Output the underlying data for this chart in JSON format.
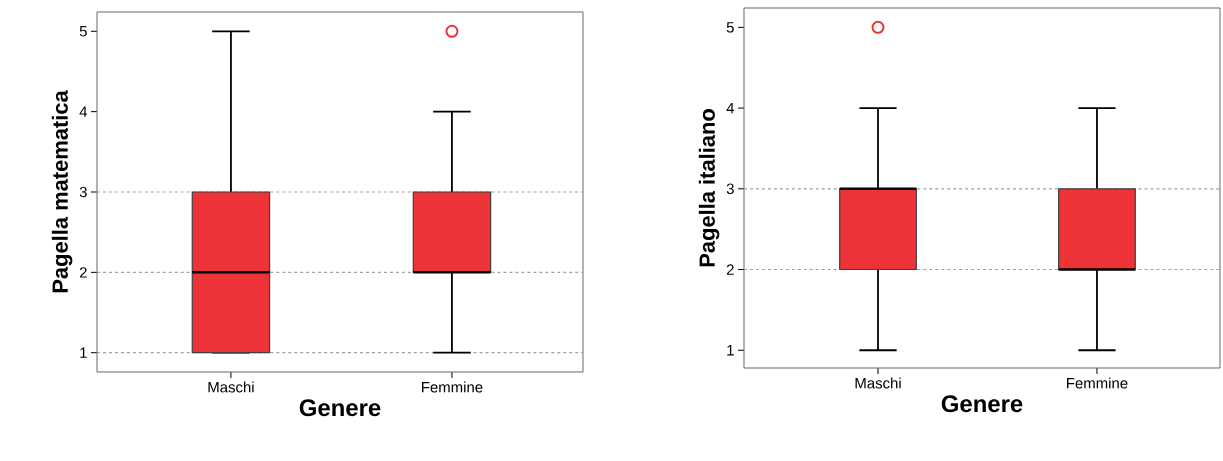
{
  "chart_data": [
    {
      "type": "box",
      "xlabel": "Genere",
      "ylabel": "Pagella matematica",
      "categories": [
        "Maschi",
        "Femmine"
      ],
      "ylim": [
        0.76,
        5.24
      ],
      "yticks": [
        1,
        2,
        3,
        4,
        5
      ],
      "series": [
        {
          "color": "#ee3338",
          "boxes": [
            {
              "low": 1,
              "q1": 1,
              "median": 2,
              "q3": 3,
              "high": 5
            },
            {
              "low": 1,
              "q1": 2,
              "median": 2,
              "q3": 3,
              "high": 4,
              "outliers": [
                5
              ]
            }
          ]
        }
      ],
      "ref_lines": [
        {
          "axis": "y",
          "value": 1,
          "color": "#a0a0a0",
          "line_style": "dashed"
        },
        {
          "axis": "y",
          "value": 2,
          "color": "#a0a0a0",
          "line_style": "dashed"
        },
        {
          "axis": "y",
          "value": 3,
          "color": "#a0a0a0",
          "line_style": "dashed"
        }
      ]
    },
    {
      "type": "box",
      "xlabel": "Genere",
      "ylabel": "Pagella italiano",
      "categories": [
        "Maschi",
        "Femmine"
      ],
      "ylim": [
        0.78,
        5.24
      ],
      "yticks": [
        1,
        2,
        3,
        4,
        5
      ],
      "series": [
        {
          "color": "#ee3338",
          "boxes": [
            {
              "low": 1,
              "q1": 2,
              "median": 3,
              "q3": 3,
              "high": 4,
              "outliers": [
                5
              ]
            },
            {
              "low": 1,
              "q1": 2,
              "median": 2,
              "q3": 3,
              "high": 4
            }
          ]
        }
      ],
      "ref_lines": [
        {
          "axis": "y",
          "value": 2,
          "color": "#a0a0a0",
          "line_style": "dashed"
        },
        {
          "axis": "y",
          "value": 3,
          "color": "#a0a0a0",
          "line_style": "dashed"
        }
      ]
    }
  ]
}
